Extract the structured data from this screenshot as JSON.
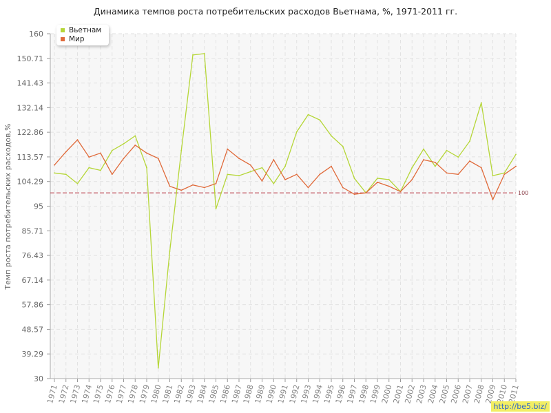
{
  "title": "Динамика темпов роста потребительских расходов Вьетнама, %, 1971-2011 гг.",
  "watermark": "http://be5.biz/",
  "chart_data": {
    "type": "line",
    "title": "Динамика темпов роста потребительских расходов Вьетнама, %, 1971-2011 гг.",
    "xlabel": "",
    "ylabel": "Темп роста потребительских расходов,%",
    "x": [
      1971,
      1972,
      1973,
      1974,
      1975,
      1976,
      1977,
      1978,
      1979,
      1980,
      1981,
      1982,
      1983,
      1984,
      1985,
      1986,
      1987,
      1988,
      1989,
      1990,
      1991,
      1992,
      1993,
      1994,
      1995,
      1996,
      1997,
      1998,
      1999,
      2000,
      2001,
      2002,
      2003,
      2004,
      2005,
      2006,
      2007,
      2008,
      2009,
      2010,
      2011
    ],
    "ylim": [
      30,
      160
    ],
    "yticks": [
      "30",
      "39.29",
      "48.57",
      "57.86",
      "67.14",
      "76.43",
      "85.71",
      "95",
      "104.29",
      "113.57",
      "122.86",
      "132.14",
      "141.43",
      "150.71",
      "160"
    ],
    "reference_line": {
      "value": 100,
      "label": "100",
      "color": "#c0505a"
    },
    "grid": true,
    "legend_position": "top-left",
    "series": [
      {
        "name": "Вьетнам",
        "color": "#b5d637",
        "values": [
          107.5,
          107,
          103.5,
          109.5,
          108.5,
          116,
          118.5,
          121.5,
          109.5,
          34,
          78,
          116,
          152,
          152.5,
          94,
          107,
          106.5,
          108,
          109.5,
          103.5,
          110,
          123,
          129.5,
          127.5,
          121.5,
          117.5,
          105.5,
          100,
          105.5,
          105,
          100.5,
          109.5,
          116.5,
          110,
          116,
          113.5,
          119.5,
          134,
          106.5,
          107.5,
          114.5
        ]
      },
      {
        "name": "Мир",
        "color": "#e06a3a",
        "values": [
          110.5,
          115.5,
          120,
          113.5,
          115,
          107,
          113,
          118,
          115,
          113,
          102.5,
          101,
          103,
          102,
          103.5,
          116.5,
          113,
          110.5,
          104.5,
          112.5,
          105,
          107,
          102,
          107,
          110,
          102,
          99.5,
          100,
          104,
          102.5,
          100.5,
          105,
          112.5,
          111.5,
          107.5,
          107,
          112,
          109.5,
          97.5,
          107,
          110
        ]
      }
    ]
  }
}
